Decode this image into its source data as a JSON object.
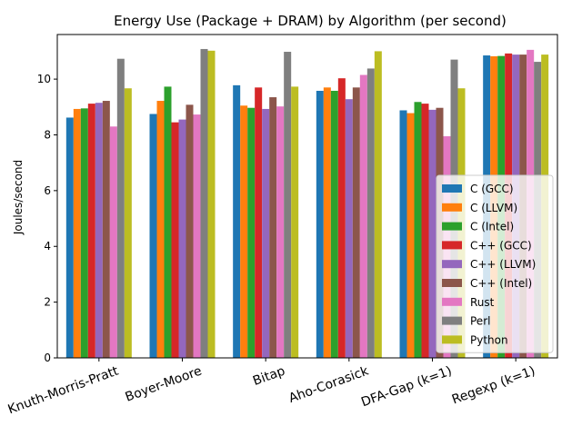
{
  "chart_data": {
    "type": "bar",
    "title": "Energy Use (Package + DRAM) by Algorithm (per second)",
    "xlabel": "",
    "ylabel": "Joules/second",
    "ylim": [
      0,
      11.6
    ],
    "yticks": [
      0,
      2,
      4,
      6,
      8,
      10
    ],
    "legend_position": "lower-right",
    "grid": false,
    "categories": [
      "Knuth-Morris-Pratt",
      "Boyer-Moore",
      "Bitap",
      "Aho-Corasick",
      "DFA-Gap (k=1)",
      "Regexp (k=1)"
    ],
    "series": [
      {
        "name": "C (GCC)",
        "color": "#1f77b4",
        "values": [
          8.62,
          8.75,
          9.78,
          9.58,
          8.88,
          10.85
        ]
      },
      {
        "name": "C (LLVM)",
        "color": "#ff7f0e",
        "values": [
          8.93,
          9.22,
          9.05,
          9.7,
          8.78,
          10.82
        ]
      },
      {
        "name": "C (Intel)",
        "color": "#2ca02c",
        "values": [
          8.95,
          9.73,
          8.97,
          9.58,
          9.18,
          10.83
        ]
      },
      {
        "name": "C++ (GCC)",
        "color": "#d62728",
        "values": [
          9.12,
          8.45,
          9.7,
          10.03,
          9.12,
          10.92
        ]
      },
      {
        "name": "C++ (LLVM)",
        "color": "#9467bd",
        "values": [
          9.15,
          8.55,
          8.93,
          9.28,
          8.9,
          10.88
        ]
      },
      {
        "name": "C++ (Intel)",
        "color": "#8c564b",
        "values": [
          9.22,
          9.08,
          9.35,
          9.7,
          8.97,
          10.88
        ]
      },
      {
        "name": "Rust",
        "color": "#e377c2",
        "values": [
          8.3,
          8.73,
          9.02,
          10.15,
          7.95,
          11.05
        ]
      },
      {
        "name": "Perl",
        "color": "#7f7f7f",
        "values": [
          10.73,
          11.08,
          10.98,
          10.38,
          10.7,
          10.62
        ]
      },
      {
        "name": "Python",
        "color": "#bcbd22",
        "values": [
          9.67,
          11.02,
          9.73,
          11.0,
          9.67,
          10.88
        ]
      }
    ]
  }
}
